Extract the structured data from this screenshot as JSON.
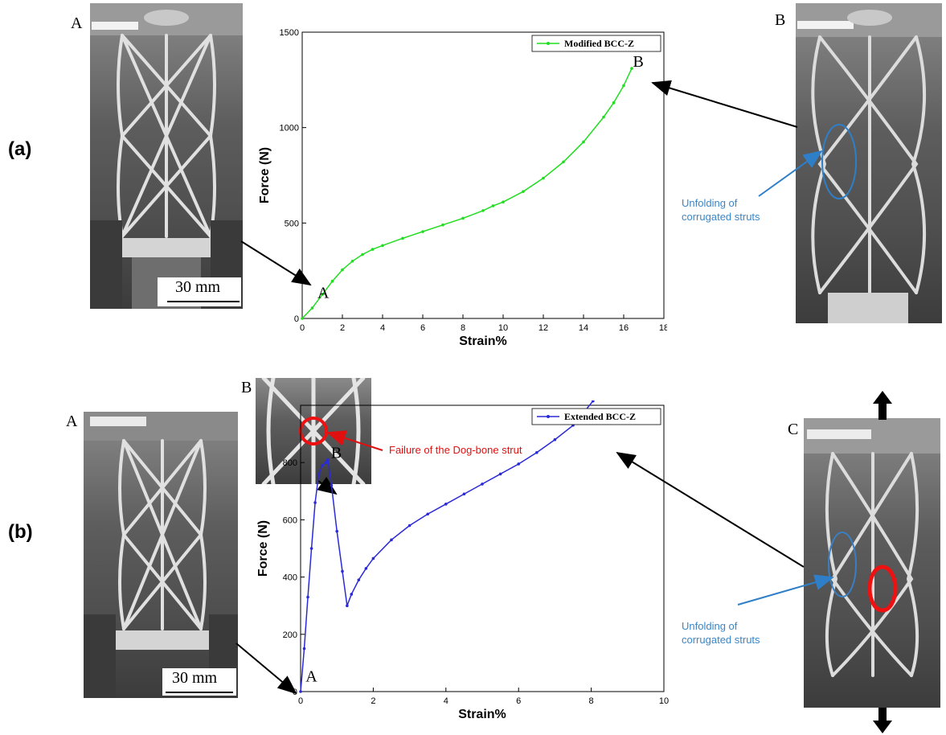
{
  "panels": {
    "a": {
      "label": "(a)",
      "photo_left_letter": "A",
      "photo_right_letter": "B",
      "scalebar": "30 mm",
      "annotation_lines": [
        "Unfolding of",
        "corrugated struts"
      ]
    },
    "b": {
      "label": "(b)",
      "photo_left_letter": "A",
      "inset_letter": "B",
      "photo_right_letter": "C",
      "scalebar": "30 mm",
      "failure_annotation": "Failure of the Dog-bone strut",
      "annotation_lines": [
        "Unfolding of",
        "corrugated struts"
      ]
    }
  },
  "chart_data": [
    {
      "type": "line",
      "xlabel": "Strain%",
      "ylabel": "Force (N)",
      "xlim": [
        0,
        18
      ],
      "ylim": [
        0,
        1500
      ],
      "xticks": [
        "0",
        "2",
        "4",
        "6",
        "8",
        "10",
        "12",
        "14",
        "16",
        "18"
      ],
      "yticks": [
        "0",
        "500",
        "1000",
        "1500"
      ],
      "legend_position": "top-right",
      "point_labels": [
        {
          "text": "A",
          "x": 0.6,
          "y": 100
        },
        {
          "text": "B",
          "x": 16.3,
          "y": 1310
        }
      ],
      "series": [
        {
          "name": "Modified BCC-Z",
          "color": "#22dd22",
          "x": [
            0,
            0.5,
            1,
            1.5,
            2,
            2.5,
            3,
            3.5,
            4,
            5,
            6,
            7,
            8,
            9,
            9.5,
            10,
            11,
            12,
            13,
            14,
            15,
            15.5,
            16,
            16.4
          ],
          "y": [
            0,
            55,
            125,
            195,
            255,
            300,
            335,
            362,
            382,
            420,
            455,
            490,
            525,
            565,
            590,
            610,
            665,
            735,
            820,
            925,
            1055,
            1130,
            1220,
            1310
          ]
        }
      ]
    },
    {
      "type": "line",
      "xlabel": "Strain%",
      "ylabel": "Force (N)",
      "xlim": [
        0,
        10
      ],
      "ylim": [
        0,
        1000
      ],
      "xticks": [
        "0",
        "2",
        "4",
        "6",
        "8",
        "10"
      ],
      "yticks": [
        "0",
        "200",
        "400",
        "600",
        "800"
      ],
      "legend_position": "top-right",
      "point_labels": [
        {
          "text": "A",
          "x": 0.05,
          "y": 30
        },
        {
          "text": "B",
          "x": 0.75,
          "y": 810
        },
        {
          "text": "C",
          "x": 8.05,
          "y": 1015
        }
      ],
      "series": [
        {
          "name": "Extended BCC-Z",
          "color": "#2a2ad6",
          "x": [
            0,
            0.1,
            0.2,
            0.3,
            0.4,
            0.5,
            0.6,
            0.7,
            0.75,
            0.85,
            1.0,
            1.15,
            1.28,
            1.4,
            1.6,
            1.8,
            2.0,
            2.5,
            3.0,
            3.5,
            4.0,
            4.5,
            5.0,
            5.5,
            6.0,
            6.5,
            7.0,
            7.5,
            8.05
          ],
          "y": [
            0,
            150,
            330,
            500,
            660,
            760,
            790,
            800,
            810,
            720,
            560,
            420,
            300,
            340,
            390,
            430,
            465,
            530,
            580,
            620,
            655,
            690,
            725,
            760,
            795,
            835,
            880,
            930,
            1015
          ]
        }
      ]
    }
  ]
}
